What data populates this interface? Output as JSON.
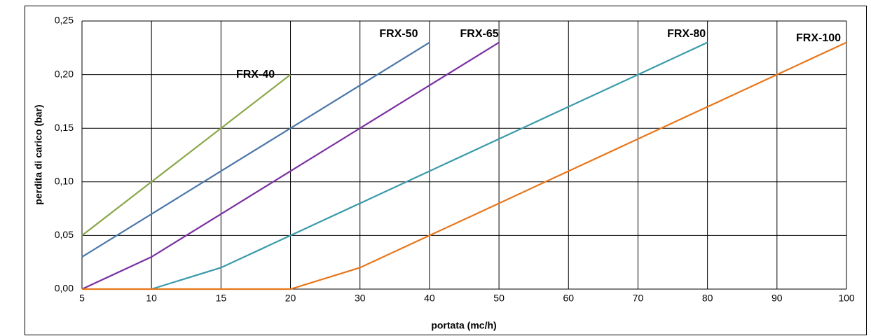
{
  "chart_data": {
    "type": "line",
    "x_label": "portata (mc/h)",
    "y_label": "perdita di carico (bar)",
    "categories": [
      "5",
      "10",
      "15",
      "20",
      "30",
      "40",
      "50",
      "60",
      "70",
      "80",
      "90",
      "100"
    ],
    "ylim": [
      0,
      0.25
    ],
    "yticks": [
      {
        "value": 0,
        "label": "0,00"
      },
      {
        "value": 0.05,
        "label": "0,05"
      },
      {
        "value": 0.1,
        "label": "0,10"
      },
      {
        "value": 0.15,
        "label": "0,15"
      },
      {
        "value": 0.2,
        "label": "0,20"
      },
      {
        "value": 0.25,
        "label": "0,25"
      }
    ],
    "grid": true,
    "series": [
      {
        "name": "FRX-40",
        "color": "#8aa84a",
        "values": [
          0.05,
          0.1,
          0.15,
          0.2,
          null,
          null,
          null,
          null,
          null,
          null,
          null,
          null
        ]
      },
      {
        "name": "FRX-50",
        "color": "#4a76a8",
        "values": [
          0.03,
          0.07,
          0.11,
          0.15,
          0.19,
          0.23,
          null,
          null,
          null,
          null,
          null,
          null
        ]
      },
      {
        "name": "FRX-65",
        "color": "#7a30a0",
        "values": [
          0,
          0.03,
          0.07,
          0.11,
          0.15,
          0.19,
          0.23,
          null,
          null,
          null,
          null,
          null
        ]
      },
      {
        "name": "FRX-80",
        "color": "#3a9aaa",
        "values": [
          null,
          0,
          0.02,
          0.05,
          0.08,
          0.11,
          0.14,
          0.17,
          0.2,
          0.23,
          null,
          null
        ]
      },
      {
        "name": "FRX-100",
        "color": "#e8761a",
        "values": [
          0,
          0,
          0,
          0,
          0.02,
          0.05,
          0.08,
          0.11,
          0.14,
          0.17,
          0.2,
          0.23
        ]
      }
    ]
  }
}
